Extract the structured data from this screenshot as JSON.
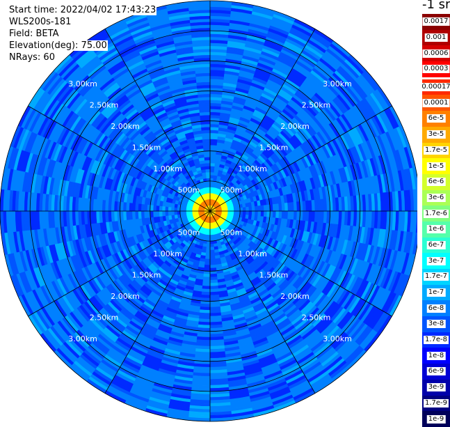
{
  "info": {
    "start_time": "Start time: 2022/04/02 17:43:23",
    "instrument": "WLS200s-181",
    "field": "Field: BETA",
    "elevation": "Elevation(deg): 75.00",
    "nrays": "NRays: 60"
  },
  "colorbar": {
    "units": "-1 sr",
    "upper": [
      {
        "label": "0.0017",
        "color": "#8b0000"
      },
      {
        "label": "0.001",
        "color": "#b00000"
      },
      {
        "label": "0.0006",
        "color": "#d40000"
      },
      {
        "label": "0.0003",
        "color": "#ff0000"
      }
    ],
    "lower": [
      {
        "label": "0.00017",
        "color": "#ff2a00"
      },
      {
        "label": "0.0001",
        "color": "#ff5500"
      },
      {
        "label": "6e-5",
        "color": "#ff8000"
      },
      {
        "label": "3e-5",
        "color": "#ffaa00"
      },
      {
        "label": "1.7e-5",
        "color": "#ffd400"
      },
      {
        "label": "1e-5",
        "color": "#ffff00"
      },
      {
        "label": "6e-6",
        "color": "#d4ff2a"
      },
      {
        "label": "3e-6",
        "color": "#aaff55"
      },
      {
        "label": "1.7e-6",
        "color": "#80ff80"
      },
      {
        "label": "1e-6",
        "color": "#55ffaa"
      },
      {
        "label": "6e-7",
        "color": "#2affd4"
      },
      {
        "label": "3e-7",
        "color": "#00ffff"
      },
      {
        "label": "1.7e-7",
        "color": "#00d4ff"
      },
      {
        "label": "1e-7",
        "color": "#00aaff"
      },
      {
        "label": "6e-8",
        "color": "#0080ff"
      },
      {
        "label": "3e-8",
        "color": "#0055ff"
      },
      {
        "label": "1.7e-8",
        "color": "#002aff"
      },
      {
        "label": "1e-8",
        "color": "#0000ff"
      },
      {
        "label": "6e-9",
        "color": "#0000d4"
      },
      {
        "label": "3e-9",
        "color": "#0000aa"
      },
      {
        "label": "1.7e-9",
        "color": "#000080"
      },
      {
        "label": "1e-9",
        "color": "#00005a"
      }
    ]
  },
  "chart_data": {
    "type": "heatmap",
    "projection": "polar PPI",
    "field": "BETA",
    "n_rays": 60,
    "max_range_km": 3.5,
    "range_rings_km": [
      0.5,
      1.0,
      1.5,
      2.0,
      2.5,
      3.0
    ],
    "ring_labels": [
      "500m",
      "1.00km",
      "1.50km",
      "2.00km",
      "2.50km",
      "3.00km"
    ],
    "spoke_azimuths_deg": [
      0,
      30,
      60,
      90,
      120,
      150,
      180,
      210,
      240,
      270,
      300,
      330
    ],
    "ring_label_azimuths_deg": [
      45,
      135,
      225,
      315
    ],
    "near_range_profile": [
      {
        "range_km": 0.1,
        "value": "1.7e-5"
      },
      {
        "range_km": 0.2,
        "value": "6e-5"
      },
      {
        "range_km": 0.3,
        "value": "1e-5"
      },
      {
        "range_km": 0.4,
        "value": "3e-7"
      },
      {
        "range_km": 0.5,
        "value": "6e-8"
      }
    ],
    "far_range_levels": [
      "3e-8",
      "1.7e-8",
      "6e-8",
      "1e-7"
    ],
    "grid": true
  }
}
